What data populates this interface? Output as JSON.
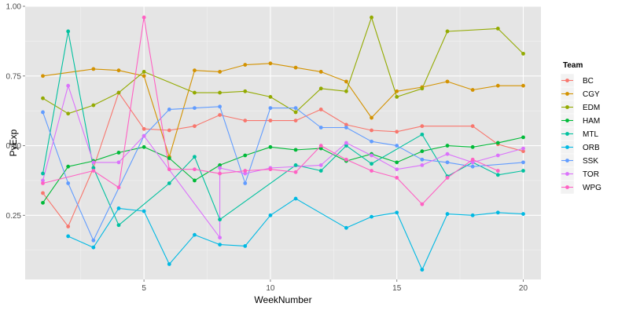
{
  "chart_data": {
    "type": "line",
    "xlabel": "WeekNumber",
    "ylabel": "PyExp",
    "xlim": [
      0.3,
      20.7
    ],
    "ylim": [
      0.02,
      1.0
    ],
    "x_ticks": [
      5,
      10,
      15,
      20
    ],
    "x_tick_labels": [
      "5",
      "10",
      "15",
      "20"
    ],
    "y_ticks": [
      0.25,
      0.5,
      0.75,
      1.0
    ],
    "y_tick_labels": [
      "0.25",
      "0.50",
      "0.75",
      "1.00"
    ],
    "grid": true,
    "legend": {
      "title": "Team",
      "position": "right"
    },
    "series": [
      {
        "name": "BC",
        "color": "#F8766D",
        "x": [
          1,
          2,
          3,
          4,
          5,
          6,
          7,
          8,
          9,
          10,
          11,
          12,
          13,
          14,
          15,
          16,
          18,
          19,
          20
        ],
        "y": [
          0.33,
          0.21,
          0.42,
          0.69,
          0.56,
          0.555,
          0.57,
          0.61,
          0.59,
          0.59,
          0.59,
          0.63,
          0.575,
          0.555,
          0.55,
          0.57,
          0.57,
          0.505,
          0.48
        ]
      },
      {
        "name": "CGY",
        "color": "#D39200",
        "x": [
          1,
          3,
          4,
          5,
          6,
          7,
          8,
          9,
          10,
          11,
          12,
          13,
          14,
          15,
          16,
          17,
          18,
          19,
          20
        ],
        "y": [
          0.75,
          0.775,
          0.77,
          0.75,
          0.46,
          0.77,
          0.765,
          0.79,
          0.795,
          0.78,
          0.765,
          0.73,
          0.6,
          0.695,
          0.71,
          0.73,
          0.7,
          0.715,
          0.715
        ]
      },
      {
        "name": "EDM",
        "color": "#93AA00",
        "x": [
          1,
          2,
          3,
          4,
          5,
          7,
          8,
          9,
          10,
          11,
          12,
          13,
          14,
          15,
          16,
          17,
          19,
          20
        ],
        "y": [
          0.67,
          0.615,
          0.645,
          0.69,
          0.765,
          0.69,
          0.69,
          0.695,
          0.675,
          0.62,
          0.705,
          0.695,
          0.96,
          0.675,
          0.705,
          0.91,
          0.92,
          0.83
        ]
      },
      {
        "name": "HAM",
        "color": "#00BA38",
        "x": [
          1,
          2,
          3,
          4,
          5,
          6,
          7,
          8,
          9,
          10,
          11,
          12,
          13,
          14,
          15,
          16,
          17,
          18,
          19,
          20
        ],
        "y": [
          0.295,
          0.425,
          0.445,
          0.475,
          0.495,
          0.455,
          0.375,
          0.43,
          0.465,
          0.495,
          0.485,
          0.49,
          0.445,
          0.47,
          0.44,
          0.48,
          0.5,
          0.495,
          0.51,
          0.53
        ]
      },
      {
        "name": "MTL",
        "color": "#00C19F",
        "x": [
          1,
          2,
          3,
          4,
          6,
          7,
          8,
          11,
          12,
          13,
          14,
          16,
          17,
          18,
          19,
          20
        ],
        "y": [
          0.4,
          0.91,
          0.42,
          0.215,
          0.365,
          0.46,
          0.235,
          0.43,
          0.41,
          0.5,
          0.435,
          0.54,
          0.39,
          0.44,
          0.395,
          0.41
        ]
      },
      {
        "name": "ORB",
        "color": "#00B9E3",
        "x": [
          2,
          3,
          4,
          5,
          6,
          7,
          8,
          9,
          10,
          11,
          13,
          14,
          15,
          16,
          17,
          18,
          19,
          20
        ],
        "y": [
          0.175,
          0.135,
          0.275,
          0.265,
          0.075,
          0.18,
          0.145,
          0.14,
          0.25,
          0.31,
          0.205,
          0.245,
          0.26,
          0.055,
          0.255,
          0.25,
          0.26,
          0.255
        ]
      },
      {
        "name": "SSK",
        "color": "#619CFF",
        "x": [
          1,
          2,
          3,
          5,
          6,
          7,
          8,
          9,
          10,
          11,
          12,
          13,
          14,
          15,
          16,
          17,
          18,
          20
        ],
        "y": [
          0.62,
          0.365,
          0.16,
          0.535,
          0.63,
          0.635,
          0.64,
          0.365,
          0.635,
          0.635,
          0.565,
          0.565,
          0.515,
          0.5,
          0.45,
          0.44,
          0.425,
          0.44
        ]
      },
      {
        "name": "TOR",
        "color": "#DB72FB",
        "x": [
          1,
          2,
          3,
          4,
          5,
          8,
          8,
          9,
          10,
          12,
          13,
          14,
          15,
          16,
          17,
          18,
          19,
          20
        ],
        "y": [
          0.375,
          0.715,
          0.44,
          0.44,
          0.535,
          0.17,
          0.42,
          0.4,
          0.42,
          0.43,
          0.51,
          0.465,
          0.415,
          0.43,
          0.47,
          0.44,
          0.465,
          0.49
        ]
      },
      {
        "name": "WPG",
        "color": "#FF61C3",
        "x": [
          1,
          3,
          4,
          5,
          6,
          7,
          8,
          9,
          10,
          11,
          12,
          13,
          14,
          15,
          16,
          17,
          18,
          19
        ],
        "y": [
          0.365,
          0.41,
          0.35,
          0.96,
          0.415,
          0.415,
          0.4,
          0.41,
          0.415,
          0.405,
          0.5,
          0.45,
          0.41,
          0.385,
          0.29,
          0.385,
          0.45,
          0.41
        ]
      }
    ]
  }
}
